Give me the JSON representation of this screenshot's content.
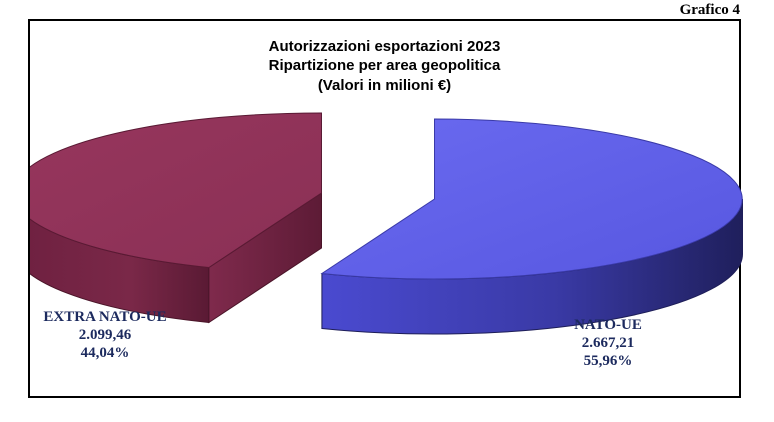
{
  "figure_label": "Grafico 4",
  "chart_data": {
    "type": "pie",
    "title": "Autorizzazioni esportazioni 2023",
    "subtitle": "Ripartizione per area geopolitica",
    "unit_note": "(Valori in milioni €)",
    "slices": [
      {
        "name": "NATO-UE",
        "value": 2667.21,
        "value_label": "2.667,21",
        "percent": 55.96,
        "percent_label": "55,96%",
        "color": "#5f5fe8"
      },
      {
        "name": "EXTRA NATO-UE",
        "value": 2099.46,
        "value_label": "2.099,46",
        "percent": 44.04,
        "percent_label": "44,04%",
        "color": "#93345a"
      }
    ],
    "legend": "none",
    "label_color": "#1c2a5e"
  }
}
